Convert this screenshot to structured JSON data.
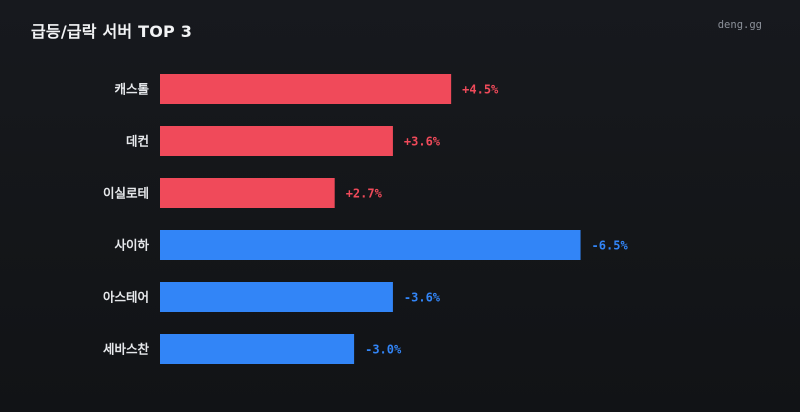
{
  "header": {
    "title": "급등/급락 서버 TOP 3",
    "brand": "deng.gg"
  },
  "colors": {
    "rise": "#f04a5a",
    "fall": "#3285f7",
    "label": "#e6e8eb"
  },
  "chart_data": {
    "type": "bar",
    "orientation": "horizontal",
    "categories": [
      "캐스톨",
      "데컨",
      "이실로테",
      "사이하",
      "아스테어",
      "세바스찬"
    ],
    "values": [
      4.5,
      3.6,
      2.7,
      -6.5,
      -3.6,
      -3.0
    ],
    "value_labels": [
      "+4.5%",
      "+3.6%",
      "+2.7%",
      "-6.5%",
      "-3.6%",
      "-3.0%"
    ],
    "title": "급등/급락 서버 TOP 3",
    "xlabel": "",
    "ylabel": "",
    "grid": false,
    "legend": "none"
  }
}
